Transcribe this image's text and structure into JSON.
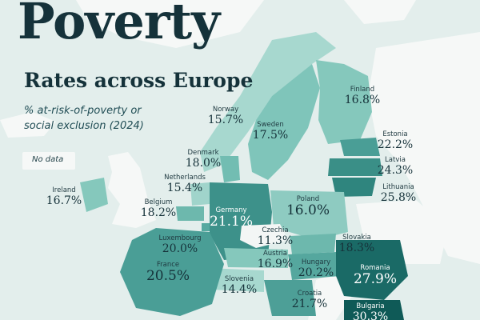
{
  "title": "Poverty",
  "subtitle": "Rates across Europe",
  "metric_line1": "% at-risk-of-poverty or",
  "metric_line2": "social exclusion (2024)",
  "legend": {
    "no_data": "No data"
  },
  "colors": {
    "sea": "#e3eeec",
    "no_data": "#f6f8f7",
    "low": "#a9d8cf",
    "high": "#0f5f5c",
    "text_dark": "#15323a"
  },
  "countries": [
    {
      "id": "finland",
      "name": "Finland",
      "value": "16.8%"
    },
    {
      "id": "norway",
      "name": "Norway",
      "value": "15.7%"
    },
    {
      "id": "sweden",
      "name": "Sweden",
      "value": "17.5%"
    },
    {
      "id": "estonia",
      "name": "Estonia",
      "value": "22.2%"
    },
    {
      "id": "latvia",
      "name": "Latvia",
      "value": "24.3%"
    },
    {
      "id": "lithuania",
      "name": "Lithuania",
      "value": "25.8%"
    },
    {
      "id": "denmark",
      "name": "Denmark",
      "value": "18.0%"
    },
    {
      "id": "netherlands",
      "name": "Netherlands",
      "value": "15.4%"
    },
    {
      "id": "ireland",
      "name": "Ireland",
      "value": "16.7%"
    },
    {
      "id": "belgium",
      "name": "Belgium",
      "value": "18.2%"
    },
    {
      "id": "germany",
      "name": "Germany",
      "value": "21.1%"
    },
    {
      "id": "poland",
      "name": "Poland",
      "value": "16.0%"
    },
    {
      "id": "luxembourg",
      "name": "Luxembourg",
      "value": "20.0%"
    },
    {
      "id": "czechia",
      "name": "Czechia",
      "value": "11.3%"
    },
    {
      "id": "slovakia",
      "name": "Slovakia",
      "value": "18.3%"
    },
    {
      "id": "austria",
      "name": "Austria",
      "value": "16.9%"
    },
    {
      "id": "france",
      "name": "France",
      "value": "20.5%"
    },
    {
      "id": "hungary",
      "name": "Hungary",
      "value": "20.2%"
    },
    {
      "id": "romania",
      "name": "Romania",
      "value": "27.9%"
    },
    {
      "id": "slovenia",
      "name": "Slovenia",
      "value": "14.4%"
    },
    {
      "id": "croatia",
      "name": "Croatia",
      "value": "21.7%"
    },
    {
      "id": "bulgaria",
      "name": "Bulgaria",
      "value": "30.3%"
    }
  ]
}
